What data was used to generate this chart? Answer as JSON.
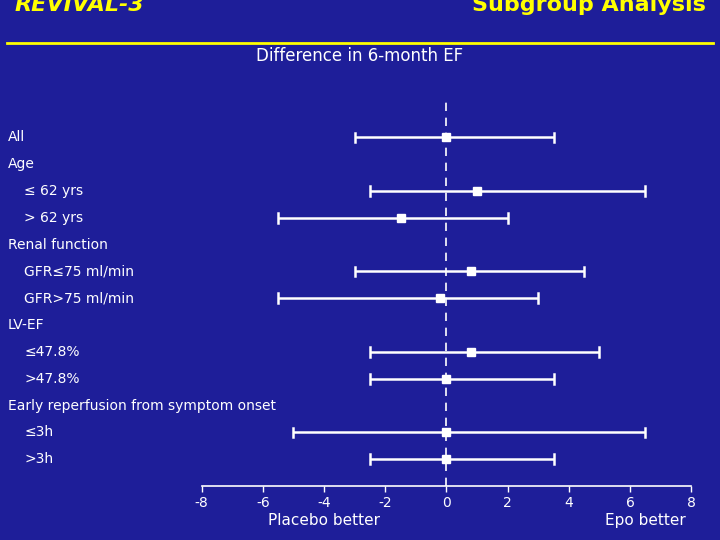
{
  "title_left": "REVIVAL-3",
  "title_right": "Subgroup Analysis",
  "subtitle": "Difference in 6-month EF",
  "background_color": "#1e1e99",
  "title_color_left": "#ffff00",
  "title_color_right": "#ffff00",
  "subtitle_color": "#ffffff",
  "line_color": "#ffffff",
  "text_color": "#ffffff",
  "axis_color": "#ffffff",
  "separator_color": "#ffff00",
  "xlim": [
    -8,
    8
  ],
  "xticks": [
    -8,
    -6,
    -4,
    -2,
    0,
    2,
    4,
    6,
    8
  ],
  "xlabel_left": "Placebo better",
  "xlabel_right": "Epo better",
  "rows": [
    {
      "label": "All",
      "indent": 0,
      "point": 0.0,
      "ci_low": -3.0,
      "ci_high": 3.5
    },
    {
      "label": "Age",
      "indent": 0,
      "point": null,
      "ci_low": null,
      "ci_high": null
    },
    {
      "label": "≤ 62 yrs",
      "indent": 1,
      "point": 1.0,
      "ci_low": -2.5,
      "ci_high": 6.5
    },
    {
      "label": "> 62 yrs",
      "indent": 1,
      "point": -1.5,
      "ci_low": -5.5,
      "ci_high": 2.0
    },
    {
      "label": "Renal function",
      "indent": 0,
      "point": null,
      "ci_low": null,
      "ci_high": null
    },
    {
      "label": "GFR≤75 ml/min",
      "indent": 1,
      "point": 0.8,
      "ci_low": -3.0,
      "ci_high": 4.5
    },
    {
      "label": "GFR>75 ml/min",
      "indent": 1,
      "point": -0.2,
      "ci_low": -5.5,
      "ci_high": 3.0
    },
    {
      "label": "LV-EF",
      "indent": 0,
      "point": null,
      "ci_low": null,
      "ci_high": null
    },
    {
      "label": "≤47.8%",
      "indent": 1,
      "point": 0.8,
      "ci_low": -2.5,
      "ci_high": 5.0
    },
    {
      "label": ">47.8%",
      "indent": 1,
      "point": 0.0,
      "ci_low": -2.5,
      "ci_high": 3.5
    },
    {
      "label": "Early reperfusion from symptom onset",
      "indent": 0,
      "point": null,
      "ci_low": null,
      "ci_high": null
    },
    {
      "label": "≤3h",
      "indent": 1,
      "point": 0.0,
      "ci_low": -5.0,
      "ci_high": 6.5
    },
    {
      "label": ">3h",
      "indent": 1,
      "point": 0.0,
      "ci_low": -2.5,
      "ci_high": 3.5
    }
  ]
}
